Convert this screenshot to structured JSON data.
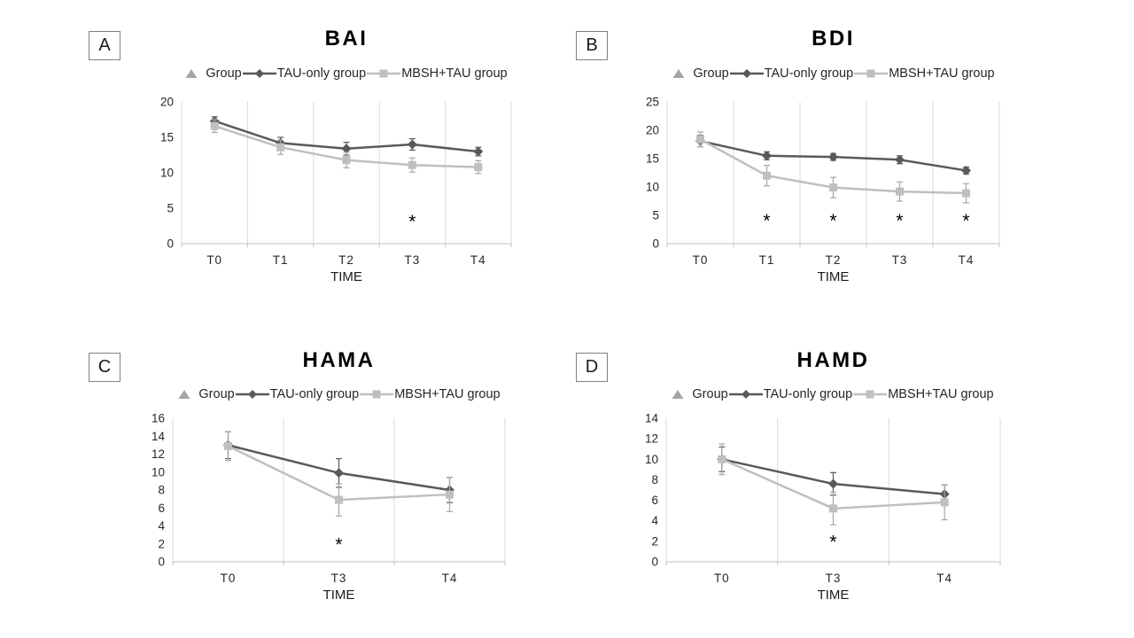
{
  "figure_type": "2x2 grid of line charts with error bars",
  "colors": {
    "tau_only_series": "#595959",
    "mbsh_tau_series": "#bfbfbf",
    "mbsh_tau_error_bars": "#a6a6a6",
    "group_triangle": "#a6a6a6",
    "gridline": "#d9d9d9",
    "axis_line": "#bfbfbf",
    "asterisk": "#000000",
    "tick_text": "#262626",
    "title_text": "#000000"
  },
  "chart_data": [
    {
      "panel_label": "A",
      "title": "BAI",
      "type": "line",
      "xlabel": "TIME",
      "categories": [
        "T0",
        "T1",
        "T2",
        "T3",
        "T4"
      ],
      "ylim": [
        0,
        20
      ],
      "yticks": [
        0,
        5,
        10,
        15,
        20
      ],
      "grid": "vertical",
      "legend_position": "top",
      "legend_items": [
        {
          "label": "Group",
          "marker": "triangle",
          "color": "#a6a6a6",
          "line": false
        },
        {
          "label": "TAU-only group",
          "marker": "diamond",
          "color": "#595959",
          "line": true
        },
        {
          "label": "MBSH+TAU group",
          "marker": "square",
          "color": "#bfbfbf",
          "line": true
        }
      ],
      "series": [
        {
          "name": "TAU-only group",
          "marker": "diamond",
          "color": "#595959",
          "err_color": "#595959",
          "values": [
            17.3,
            14.2,
            13.4,
            14.0,
            13.0
          ],
          "err": [
            0.6,
            0.8,
            0.9,
            0.8,
            0.6
          ]
        },
        {
          "name": "MBSH+TAU group",
          "marker": "square",
          "color": "#bfbfbf",
          "err_color": "#a6a6a6",
          "values": [
            16.6,
            13.6,
            11.8,
            11.1,
            10.8
          ],
          "err": [
            0.9,
            1.0,
            1.1,
            1.0,
            0.9
          ]
        }
      ],
      "significance_asterisks": [
        {
          "category": "T3",
          "y": 3.5,
          "symbol": "*"
        }
      ]
    },
    {
      "panel_label": "B",
      "title": "BDI",
      "type": "line",
      "xlabel": "TIME",
      "categories": [
        "T0",
        "T1",
        "T2",
        "T3",
        "T4"
      ],
      "ylim": [
        0,
        25
      ],
      "yticks": [
        0,
        5,
        10,
        15,
        20,
        25
      ],
      "grid": "vertical",
      "legend_position": "top",
      "legend_items": [
        {
          "label": "Group",
          "marker": "triangle",
          "color": "#a6a6a6",
          "line": false
        },
        {
          "label": "TAU-only group",
          "marker": "diamond",
          "color": "#595959",
          "line": true
        },
        {
          "label": "MBSH+TAU group",
          "marker": "square",
          "color": "#bfbfbf",
          "line": true
        }
      ],
      "series": [
        {
          "name": "TAU-only group",
          "marker": "diamond",
          "color": "#595959",
          "err_color": "#595959",
          "values": [
            18.1,
            15.5,
            15.3,
            14.8,
            12.9
          ],
          "err": [
            1.0,
            0.7,
            0.6,
            0.7,
            0.6
          ]
        },
        {
          "name": "MBSH+TAU group",
          "marker": "square",
          "color": "#bfbfbf",
          "err_color": "#a6a6a6",
          "values": [
            18.4,
            12.0,
            9.9,
            9.2,
            8.9
          ],
          "err": [
            1.3,
            1.8,
            1.8,
            1.7,
            1.7
          ]
        }
      ],
      "significance_asterisks": [
        {
          "category": "T1",
          "y": 4.5,
          "symbol": "*"
        },
        {
          "category": "T2",
          "y": 4.5,
          "symbol": "*"
        },
        {
          "category": "T3",
          "y": 4.5,
          "symbol": "*"
        },
        {
          "category": "T4",
          "y": 4.5,
          "symbol": "*"
        }
      ]
    },
    {
      "panel_label": "C",
      "title": "HAMA",
      "type": "line",
      "xlabel": "TIME",
      "categories": [
        "T0",
        "T3",
        "T4"
      ],
      "ylim": [
        0,
        16
      ],
      "yticks": [
        0,
        2,
        4,
        6,
        8,
        10,
        12,
        14,
        16
      ],
      "grid": "vertical",
      "legend_position": "top",
      "legend_items": [
        {
          "label": "Group",
          "marker": "triangle",
          "color": "#a6a6a6",
          "line": false
        },
        {
          "label": "TAU-only group",
          "marker": "diamond",
          "color": "#595959",
          "line": true
        },
        {
          "label": "MBSH+TAU group",
          "marker": "square",
          "color": "#bfbfbf",
          "line": true
        }
      ],
      "series": [
        {
          "name": "TAU-only group",
          "marker": "diamond",
          "color": "#595959",
          "err_color": "#595959",
          "values": [
            13.0,
            9.9,
            8.0
          ],
          "err": [
            1.5,
            1.6,
            1.4
          ]
        },
        {
          "name": "MBSH+TAU group",
          "marker": "square",
          "color": "#bfbfbf",
          "err_color": "#a6a6a6",
          "values": [
            12.9,
            6.9,
            7.5
          ],
          "err": [
            1.6,
            1.8,
            1.9
          ]
        }
      ],
      "significance_asterisks": [
        {
          "category": "T3",
          "y": 2.2,
          "symbol": "*"
        }
      ]
    },
    {
      "panel_label": "D",
      "title": "HAMD",
      "type": "line",
      "xlabel": "TIME",
      "categories": [
        "T0",
        "T3",
        "T4"
      ],
      "ylim": [
        0,
        14
      ],
      "yticks": [
        0,
        2,
        4,
        6,
        8,
        10,
        12,
        14
      ],
      "grid": "vertical",
      "legend_position": "top",
      "legend_items": [
        {
          "label": "Group",
          "marker": "triangle",
          "color": "#a6a6a6",
          "line": false
        },
        {
          "label": "TAU-only group",
          "marker": "diamond",
          "color": "#595959",
          "line": true
        },
        {
          "label": "MBSH+TAU group",
          "marker": "square",
          "color": "#bfbfbf",
          "line": true
        }
      ],
      "series": [
        {
          "name": "TAU-only group",
          "marker": "diamond",
          "color": "#595959",
          "err_color": "#595959",
          "values": [
            10.0,
            7.6,
            6.6
          ],
          "err": [
            1.2,
            1.1,
            0.9
          ]
        },
        {
          "name": "MBSH+TAU group",
          "marker": "square",
          "color": "#bfbfbf",
          "err_color": "#a6a6a6",
          "values": [
            10.0,
            5.2,
            5.8
          ],
          "err": [
            1.5,
            1.6,
            1.7
          ]
        }
      ],
      "significance_asterisks": [
        {
          "category": "T3",
          "y": 2.2,
          "symbol": "*"
        }
      ]
    }
  ]
}
